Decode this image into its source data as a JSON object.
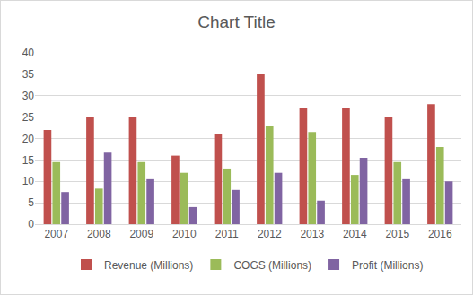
{
  "chart_data": {
    "type": "bar",
    "title": "Chart Title",
    "categories": [
      "2007",
      "2008",
      "2009",
      "2010",
      "2011",
      "2012",
      "2013",
      "2014",
      "2015",
      "2016"
    ],
    "series": [
      {
        "name": "Revenue (Millions)",
        "color": "#c0504d",
        "values": [
          22,
          25,
          25,
          16,
          21,
          35,
          27,
          27,
          25,
          28
        ]
      },
      {
        "name": "COGS (Millions)",
        "color": "#9bbb59",
        "values": [
          14.5,
          8.3,
          14.5,
          12,
          13,
          23,
          21.5,
          11.5,
          14.5,
          18
        ]
      },
      {
        "name": "Profit (Millions)",
        "color": "#8064a2",
        "values": [
          7.5,
          16.7,
          10.5,
          4,
          8,
          12,
          5.5,
          15.5,
          10.5,
          10
        ]
      }
    ],
    "ylim": [
      0,
      40
    ],
    "yticks": [
      0,
      5,
      10,
      15,
      20,
      25,
      30,
      35,
      40
    ],
    "grid": true,
    "legend": "bottom"
  }
}
